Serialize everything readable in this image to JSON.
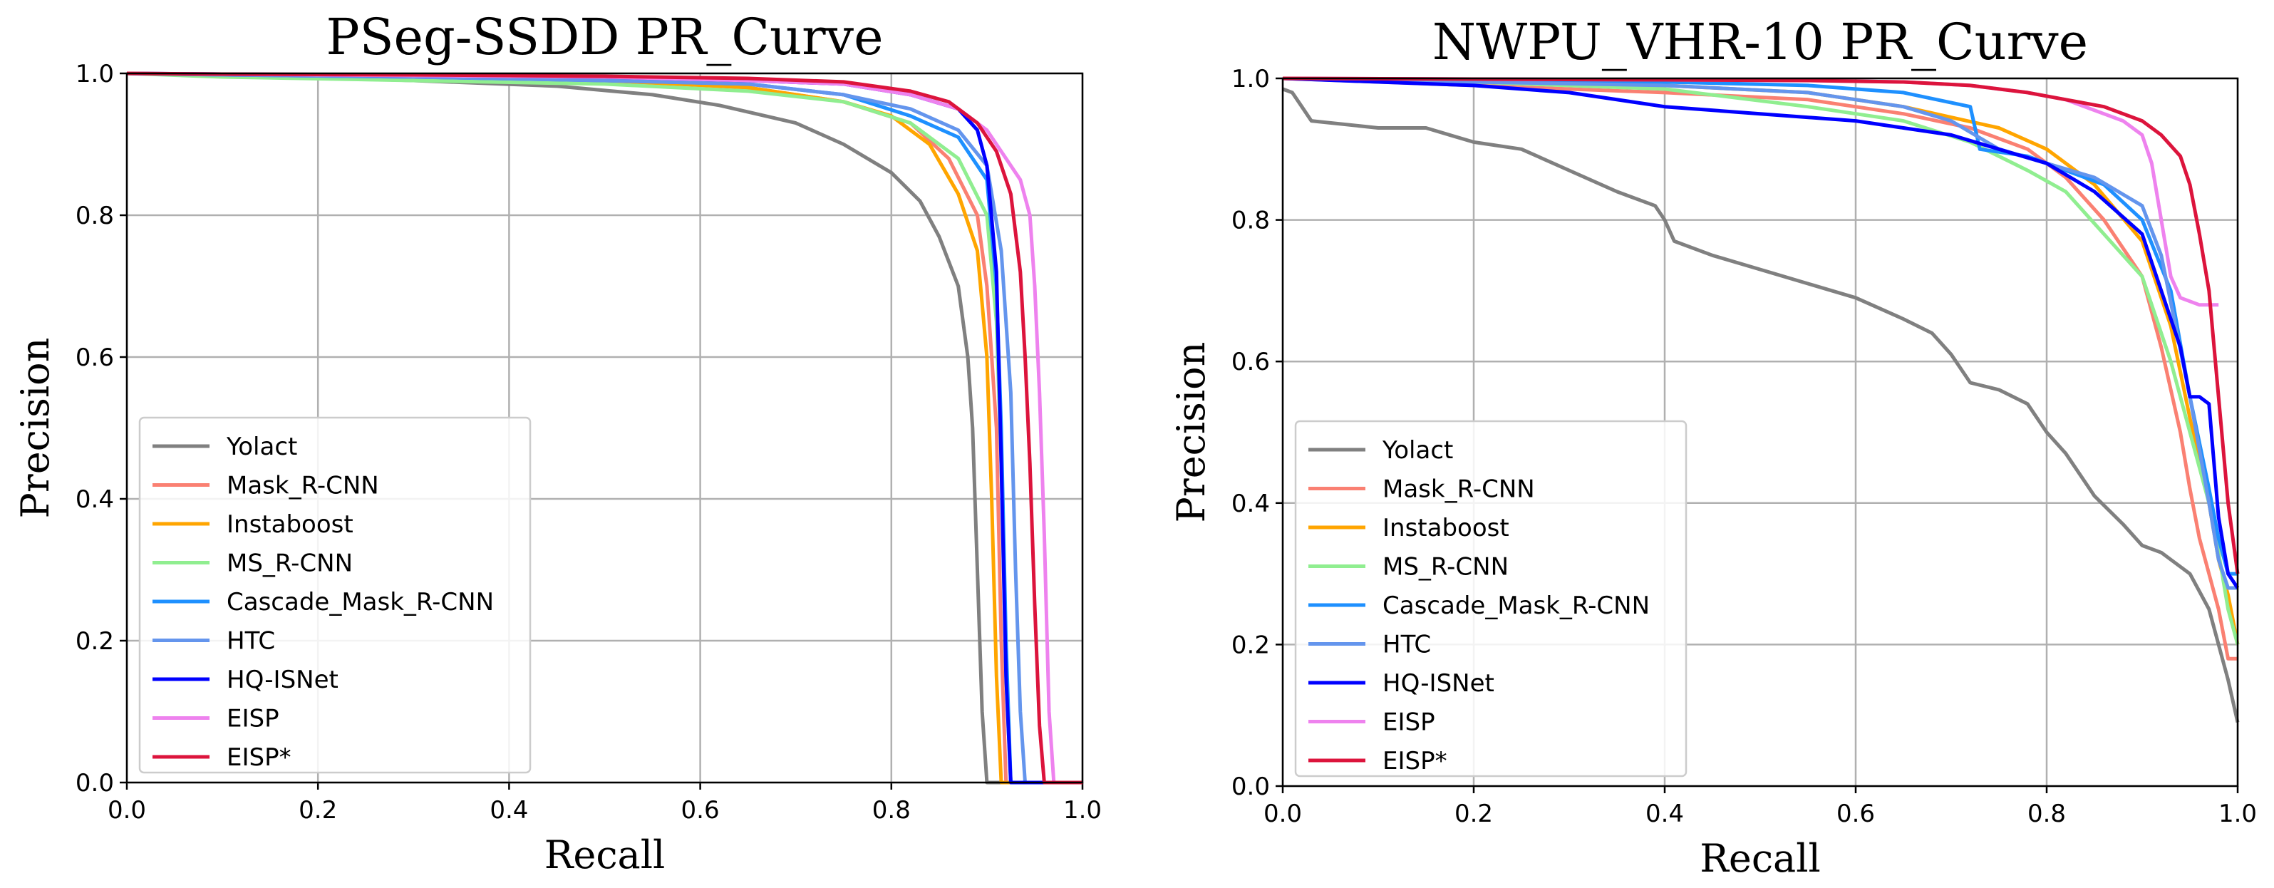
{
  "chart_data": [
    {
      "type": "line",
      "title": "PSeg-SSDD PR_Curve",
      "xlabel": "Recall",
      "ylabel": "Precision",
      "xlim": [
        0,
        1
      ],
      "ylim": [
        0,
        1
      ],
      "grid": true,
      "legend": "lower-left",
      "xticks": [
        "0.0",
        "0.2",
        "0.4",
        "0.6",
        "0.8",
        "1.0"
      ],
      "yticks": [
        "0.0",
        "0.2",
        "0.4",
        "0.6",
        "0.8",
        "1.0"
      ],
      "series": [
        {
          "name": "Yolact",
          "color": "#808080",
          "x": [
            0,
            0.1,
            0.3,
            0.45,
            0.55,
            0.62,
            0.7,
            0.75,
            0.8,
            0.83,
            0.85,
            0.87,
            0.88,
            0.885,
            0.89,
            0.895,
            0.9,
            1.0
          ],
          "y": [
            1.0,
            0.998,
            0.99,
            0.982,
            0.97,
            0.955,
            0.93,
            0.9,
            0.86,
            0.82,
            0.77,
            0.7,
            0.6,
            0.5,
            0.3,
            0.1,
            0.0,
            0.0
          ]
        },
        {
          "name": "Mask_R-CNN",
          "color": "#FA8072",
          "x": [
            0,
            0.1,
            0.3,
            0.5,
            0.65,
            0.75,
            0.82,
            0.86,
            0.89,
            0.9,
            0.91,
            0.915,
            0.92,
            1.0
          ],
          "y": [
            1.0,
            0.998,
            0.995,
            0.99,
            0.98,
            0.96,
            0.93,
            0.88,
            0.8,
            0.7,
            0.5,
            0.2,
            0.0,
            0.0
          ]
        },
        {
          "name": "Instaboost",
          "color": "#FFA500",
          "x": [
            0,
            0.1,
            0.3,
            0.5,
            0.65,
            0.75,
            0.8,
            0.84,
            0.87,
            0.89,
            0.9,
            0.905,
            0.91,
            0.915,
            1.0
          ],
          "y": [
            1.0,
            0.998,
            0.995,
            0.99,
            0.98,
            0.96,
            0.94,
            0.9,
            0.83,
            0.75,
            0.6,
            0.4,
            0.15,
            0.0,
            0.0
          ]
        },
        {
          "name": "MS_R-CNN",
          "color": "#90EE90",
          "x": [
            0,
            0.1,
            0.3,
            0.5,
            0.65,
            0.75,
            0.82,
            0.87,
            0.9,
            0.91,
            0.915,
            0.92,
            0.925,
            1.0
          ],
          "y": [
            1.0,
            0.995,
            0.99,
            0.985,
            0.975,
            0.96,
            0.93,
            0.88,
            0.8,
            0.65,
            0.45,
            0.15,
            0.0,
            0.0
          ]
        },
        {
          "name": "Cascade_Mask_R-CNN",
          "color": "#1E90FF",
          "x": [
            0,
            0.1,
            0.3,
            0.5,
            0.65,
            0.75,
            0.82,
            0.87,
            0.9,
            0.91,
            0.915,
            0.92,
            0.925,
            1.0
          ],
          "y": [
            1.0,
            0.998,
            0.995,
            0.99,
            0.985,
            0.97,
            0.94,
            0.91,
            0.85,
            0.7,
            0.5,
            0.2,
            0.0,
            0.0
          ]
        },
        {
          "name": "HTC",
          "color": "#6495ED",
          "x": [
            0,
            0.1,
            0.3,
            0.5,
            0.65,
            0.75,
            0.82,
            0.87,
            0.9,
            0.915,
            0.925,
            0.93,
            0.935,
            0.94,
            1.0
          ],
          "y": [
            1.0,
            0.998,
            0.995,
            0.99,
            0.985,
            0.97,
            0.95,
            0.92,
            0.87,
            0.75,
            0.55,
            0.3,
            0.1,
            0.0,
            0.0
          ]
        },
        {
          "name": "HQ-ISNet",
          "color": "#0000FF",
          "x": [
            0,
            0.1,
            0.3,
            0.5,
            0.65,
            0.75,
            0.82,
            0.87,
            0.89,
            0.9,
            0.91,
            0.915,
            0.92,
            0.925,
            1.0
          ],
          "y": [
            1.0,
            0.999,
            0.997,
            0.995,
            0.99,
            0.985,
            0.97,
            0.95,
            0.92,
            0.87,
            0.72,
            0.45,
            0.15,
            0.0,
            0.0
          ]
        },
        {
          "name": "EISP",
          "color": "#EE82EE",
          "x": [
            0,
            0.1,
            0.3,
            0.5,
            0.65,
            0.75,
            0.82,
            0.87,
            0.9,
            0.92,
            0.935,
            0.945,
            0.95,
            0.955,
            0.96,
            0.965,
            0.97,
            1.0
          ],
          "y": [
            1.0,
            0.999,
            0.997,
            0.995,
            0.99,
            0.985,
            0.97,
            0.95,
            0.92,
            0.88,
            0.85,
            0.8,
            0.7,
            0.55,
            0.35,
            0.1,
            0.0,
            0.0
          ]
        },
        {
          "name": "EISP*",
          "color": "#DC143C",
          "x": [
            0,
            0.1,
            0.3,
            0.5,
            0.65,
            0.75,
            0.82,
            0.86,
            0.89,
            0.91,
            0.925,
            0.935,
            0.94,
            0.945,
            0.95,
            0.955,
            0.96,
            1.0
          ],
          "y": [
            1.0,
            0.999,
            0.998,
            0.996,
            0.993,
            0.988,
            0.975,
            0.96,
            0.93,
            0.89,
            0.83,
            0.72,
            0.6,
            0.45,
            0.25,
            0.08,
            0.0,
            0.0
          ]
        }
      ]
    },
    {
      "type": "line",
      "title": "NWPU_VHR-10 PR_Curve",
      "xlabel": "Recall",
      "ylabel": "Precision",
      "xlim": [
        0,
        1
      ],
      "ylim": [
        0,
        1
      ],
      "grid": true,
      "legend": "lower-left",
      "xticks": [
        "0.0",
        "0.2",
        "0.4",
        "0.6",
        "0.8",
        "1.0"
      ],
      "yticks": [
        "0.0",
        "0.2",
        "0.4",
        "0.6",
        "0.8",
        "1.0"
      ],
      "series": [
        {
          "name": "Yolact",
          "color": "#808080",
          "x": [
            0,
            0.01,
            0.02,
            0.03,
            0.1,
            0.15,
            0.2,
            0.25,
            0.3,
            0.35,
            0.39,
            0.4,
            0.41,
            0.45,
            0.5,
            0.55,
            0.6,
            0.65,
            0.68,
            0.7,
            0.72,
            0.75,
            0.78,
            0.8,
            0.82,
            0.85,
            0.88,
            0.9,
            0.92,
            0.95,
            0.97,
            0.99,
            1.0
          ],
          "y": [
            0.985,
            0.98,
            0.96,
            0.94,
            0.93,
            0.93,
            0.91,
            0.9,
            0.87,
            0.84,
            0.82,
            0.8,
            0.77,
            0.75,
            0.73,
            0.71,
            0.69,
            0.66,
            0.64,
            0.61,
            0.57,
            0.56,
            0.54,
            0.5,
            0.47,
            0.41,
            0.37,
            0.34,
            0.33,
            0.3,
            0.25,
            0.15,
            0.09
          ]
        },
        {
          "name": "Mask_R-CNN",
          "color": "#FA8072",
          "x": [
            0,
            0.2,
            0.4,
            0.55,
            0.65,
            0.72,
            0.78,
            0.82,
            0.86,
            0.9,
            0.92,
            0.94,
            0.95,
            0.96,
            0.97,
            0.98,
            0.99,
            1.0
          ],
          "y": [
            1.0,
            0.99,
            0.98,
            0.97,
            0.95,
            0.93,
            0.9,
            0.86,
            0.8,
            0.72,
            0.62,
            0.5,
            0.42,
            0.35,
            0.3,
            0.25,
            0.18,
            0.18
          ]
        },
        {
          "name": "Instaboost",
          "color": "#FFA500",
          "x": [
            0,
            0.2,
            0.4,
            0.55,
            0.65,
            0.75,
            0.8,
            0.85,
            0.9,
            0.93,
            0.95,
            0.97,
            0.98,
            0.99,
            1.0
          ],
          "y": [
            1.0,
            0.995,
            0.99,
            0.98,
            0.96,
            0.93,
            0.9,
            0.85,
            0.77,
            0.65,
            0.52,
            0.4,
            0.32,
            0.27,
            0.2
          ]
        },
        {
          "name": "MS_R-CNN",
          "color": "#90EE90",
          "x": [
            0,
            0.2,
            0.4,
            0.55,
            0.65,
            0.72,
            0.78,
            0.82,
            0.86,
            0.9,
            0.93,
            0.95,
            0.97,
            0.98,
            0.99,
            1.0
          ],
          "y": [
            1.0,
            0.995,
            0.985,
            0.96,
            0.94,
            0.91,
            0.87,
            0.84,
            0.78,
            0.72,
            0.6,
            0.5,
            0.4,
            0.33,
            0.25,
            0.2
          ]
        },
        {
          "name": "Cascade_Mask_R-CNN",
          "color": "#1E90FF",
          "x": [
            0,
            0.2,
            0.4,
            0.55,
            0.65,
            0.72,
            0.73,
            0.78,
            0.82,
            0.86,
            0.9,
            0.93,
            0.95,
            0.97,
            0.98,
            0.99,
            1.0
          ],
          "y": [
            1.0,
            0.998,
            0.995,
            0.99,
            0.98,
            0.96,
            0.9,
            0.89,
            0.87,
            0.85,
            0.8,
            0.7,
            0.55,
            0.42,
            0.35,
            0.3,
            0.3
          ]
        },
        {
          "name": "HTC",
          "color": "#6495ED",
          "x": [
            0,
            0.2,
            0.4,
            0.55,
            0.65,
            0.7,
            0.75,
            0.8,
            0.85,
            0.9,
            0.92,
            0.95,
            0.97,
            0.98,
            0.99,
            1.0
          ],
          "y": [
            1.0,
            0.995,
            0.99,
            0.98,
            0.96,
            0.94,
            0.9,
            0.88,
            0.86,
            0.82,
            0.75,
            0.55,
            0.4,
            0.32,
            0.28,
            0.28
          ]
        },
        {
          "name": "HQ-ISNet",
          "color": "#0000FF",
          "x": [
            0,
            0.1,
            0.2,
            0.3,
            0.4,
            0.5,
            0.6,
            0.65,
            0.7,
            0.75,
            0.8,
            0.85,
            0.9,
            0.92,
            0.94,
            0.95,
            0.96,
            0.97,
            0.98,
            0.99,
            1.0
          ],
          "y": [
            1.0,
            0.995,
            0.99,
            0.98,
            0.96,
            0.95,
            0.94,
            0.93,
            0.92,
            0.9,
            0.88,
            0.84,
            0.78,
            0.7,
            0.62,
            0.55,
            0.55,
            0.54,
            0.38,
            0.3,
            0.28
          ]
        },
        {
          "name": "EISP",
          "color": "#EE82EE",
          "x": [
            0,
            0.2,
            0.4,
            0.55,
            0.65,
            0.72,
            0.78,
            0.82,
            0.86,
            0.88,
            0.9,
            0.91,
            0.92,
            0.93,
            0.94,
            0.96,
            0.98
          ],
          "y": [
            1.0,
            0.999,
            0.998,
            0.997,
            0.995,
            0.99,
            0.98,
            0.97,
            0.95,
            0.94,
            0.92,
            0.88,
            0.8,
            0.72,
            0.69,
            0.68,
            0.68
          ]
        },
        {
          "name": "EISP*",
          "color": "#DC143C",
          "x": [
            0,
            0.2,
            0.4,
            0.55,
            0.65,
            0.72,
            0.78,
            0.82,
            0.86,
            0.9,
            0.92,
            0.94,
            0.95,
            0.96,
            0.97,
            0.98,
            0.99,
            1.0
          ],
          "y": [
            1.0,
            0.999,
            0.998,
            0.997,
            0.995,
            0.99,
            0.98,
            0.97,
            0.96,
            0.94,
            0.92,
            0.89,
            0.85,
            0.78,
            0.7,
            0.55,
            0.4,
            0.3
          ]
        }
      ]
    }
  ]
}
